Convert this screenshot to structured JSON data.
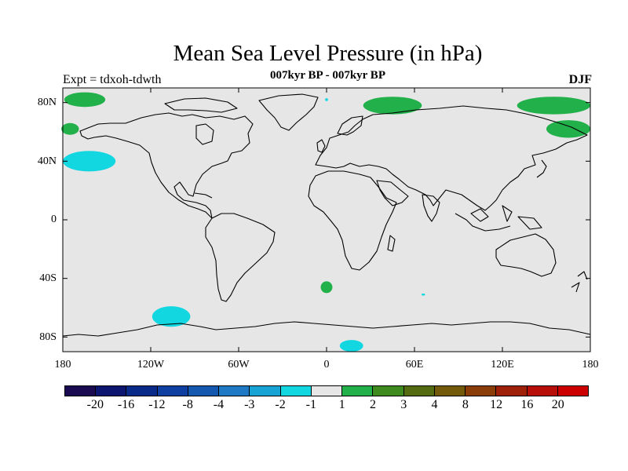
{
  "title": "Mean Sea Level Pressure (in hPa)",
  "left_label": "Expt = tdxoh-tdwth",
  "center_label": "007kyr BP - 007kyr BP",
  "right_label": "DJF",
  "lat_ticks": [
    "80N",
    "40N",
    "0",
    "40S",
    "80S"
  ],
  "lon_ticks": [
    "180",
    "120W",
    "60W",
    "0",
    "60E",
    "120E",
    "180"
  ],
  "colorbar": {
    "labels": [
      "-20",
      "-16",
      "-12",
      "-8",
      "-4",
      "-3",
      "-2",
      "-1",
      "1",
      "2",
      "3",
      "4",
      "8",
      "12",
      "16",
      "20"
    ],
    "colors": [
      "#1a0a52",
      "#0c1670",
      "#0a2a8a",
      "#0f3fa0",
      "#1558b0",
      "#1f79c4",
      "#17a3d4",
      "#12d7e0",
      "#e6e6e6",
      "#22b04a",
      "#3f8a1e",
      "#556b12",
      "#735a0a",
      "#8a3d08",
      "#9e2008",
      "#b80e0a",
      "#cc0000"
    ]
  },
  "map": {
    "background_color": "#e6e6e6",
    "anomaly_regions": [
      {
        "lon": -165,
        "lat": 82,
        "rx_deg": 14,
        "ry_deg": 5,
        "color": "#22b04a"
      },
      {
        "lon": -175,
        "lat": 62,
        "rx_deg": 6,
        "ry_deg": 4,
        "color": "#22b04a"
      },
      {
        "lon": 45,
        "lat": 78,
        "rx_deg": 20,
        "ry_deg": 6,
        "color": "#22b04a"
      },
      {
        "lon": 155,
        "lat": 78,
        "rx_deg": 25,
        "ry_deg": 6,
        "color": "#22b04a"
      },
      {
        "lon": 165,
        "lat": 62,
        "rx_deg": 15,
        "ry_deg": 6,
        "color": "#22b04a"
      },
      {
        "lon": -162,
        "lat": 40,
        "rx_deg": 18,
        "ry_deg": 7,
        "color": "#12d7e0"
      },
      {
        "lon": -106,
        "lat": -66,
        "rx_deg": 13,
        "ry_deg": 7,
        "color": "#12d7e0"
      },
      {
        "lon": 0,
        "lat": -46,
        "rx_deg": 4,
        "ry_deg": 4,
        "color": "#22b04a"
      },
      {
        "lon": 17,
        "lat": -86,
        "rx_deg": 8,
        "ry_deg": 4,
        "color": "#12d7e0"
      },
      {
        "lon": 66,
        "lat": -51,
        "rx_deg": 1.2,
        "ry_deg": 0.7,
        "color": "#12d7e0"
      },
      {
        "lon": 0,
        "lat": 82,
        "rx_deg": 1,
        "ry_deg": 1,
        "color": "#12d7e0"
      }
    ]
  }
}
